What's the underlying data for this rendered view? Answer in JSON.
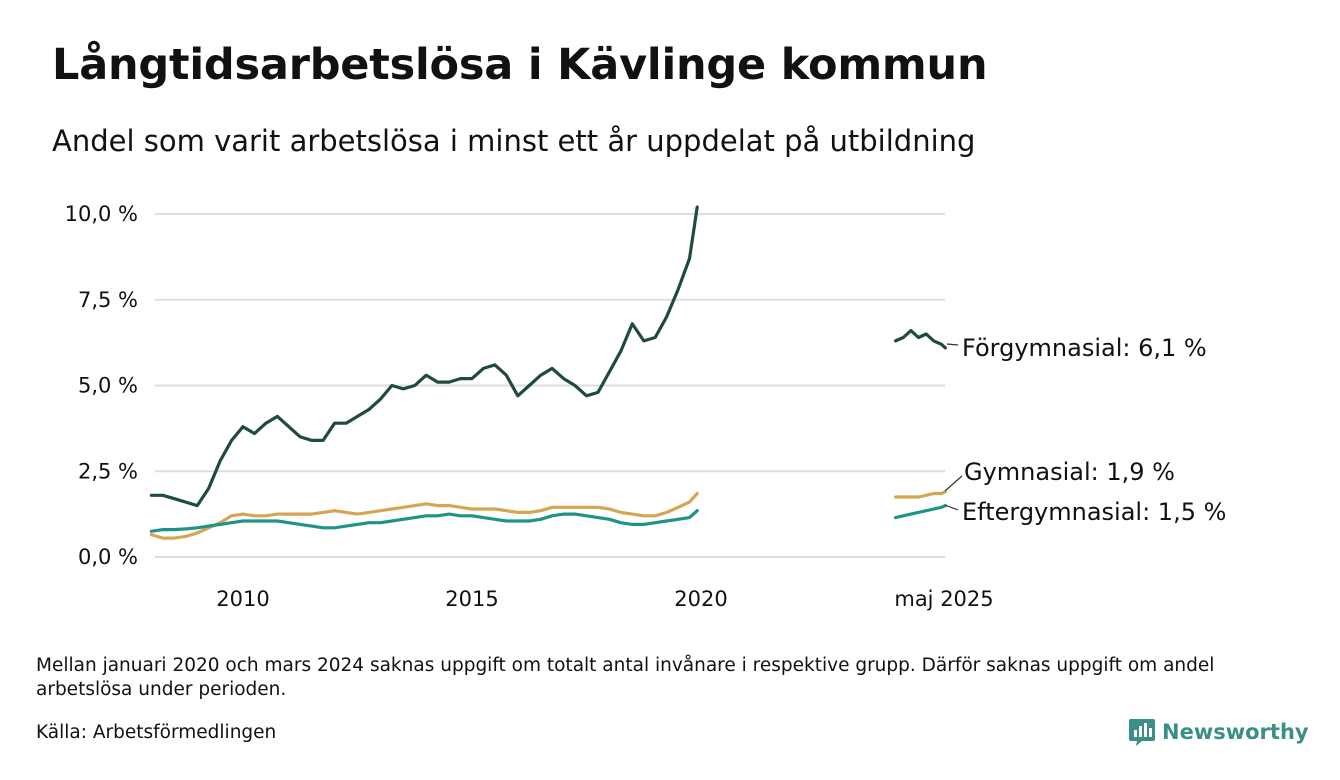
{
  "header": {
    "title": "Långtidsarbetslösa i Kävlinge kommun",
    "subtitle": "Andel som varit arbetslösa i minst ett år uppdelat på utbildning"
  },
  "footer": {
    "note": "Mellan januari 2020 och mars 2024 saknas uppgift om totalt antal invånare i respektive grupp. Därför saknas uppgift om andel arbetslösa under perioden.",
    "source": "Källa: Arbetsförmedlingen",
    "brand": "Newsworthy"
  },
  "colors": {
    "forgymnasial": "#1f4a3f",
    "gymnasial": "#d4a651",
    "eftergymnasial": "#1e9486",
    "grid": "#dddddd",
    "brand": "#3a8f86"
  },
  "chart_data": {
    "type": "line",
    "title": "Långtidsarbetslösa i Kävlinge kommun",
    "ylabel": "",
    "xlabel": "",
    "ylim": [
      0,
      10
    ],
    "y_ticks": [
      "0,0 %",
      "2,5 %",
      "5,0 %",
      "7,5 %",
      "10,0 %"
    ],
    "y_tick_values": [
      0,
      2.5,
      5,
      7.5,
      10
    ],
    "x_ticks": [
      "2010",
      "2015",
      "2020",
      "maj 2025"
    ],
    "grid": true,
    "x": [
      "2008-01",
      "2008-04",
      "2008-07",
      "2008-10",
      "2009-01",
      "2009-04",
      "2009-07",
      "2009-10",
      "2010-01",
      "2010-04",
      "2010-07",
      "2010-10",
      "2011-01",
      "2011-04",
      "2011-07",
      "2011-10",
      "2012-01",
      "2012-04",
      "2012-07",
      "2012-10",
      "2013-01",
      "2013-04",
      "2013-07",
      "2013-10",
      "2014-01",
      "2014-04",
      "2014-07",
      "2014-10",
      "2015-01",
      "2015-04",
      "2015-07",
      "2015-10",
      "2016-01",
      "2016-04",
      "2016-07",
      "2016-10",
      "2017-01",
      "2017-04",
      "2017-07",
      "2017-10",
      "2018-01",
      "2018-04",
      "2018-07",
      "2018-10",
      "2019-01",
      "2019-04",
      "2019-07",
      "2019-10",
      "2019-12"
    ],
    "x_late": [
      "2024-04",
      "2024-06",
      "2024-08",
      "2024-10",
      "2024-12",
      "2025-02",
      "2025-04",
      "2025-05"
    ],
    "series": [
      {
        "name": "Förgymnasial",
        "end_label": "Förgymnasial: 6,1 %",
        "values": [
          1.8,
          1.8,
          1.7,
          1.6,
          1.5,
          2.0,
          2.8,
          3.4,
          3.8,
          3.6,
          3.9,
          4.1,
          3.8,
          3.5,
          3.4,
          3.4,
          3.9,
          3.9,
          4.1,
          4.3,
          4.6,
          5.0,
          4.9,
          5.0,
          5.3,
          5.1,
          5.1,
          5.2,
          5.2,
          5.5,
          5.6,
          5.3,
          4.7,
          5.0,
          5.3,
          5.5,
          5.2,
          5.0,
          4.7,
          4.8,
          5.4,
          6.0,
          6.8,
          6.3,
          6.4,
          7.0,
          7.8,
          8.7,
          10.2
        ],
        "late_values": [
          6.3,
          6.4,
          6.6,
          6.4,
          6.5,
          6.3,
          6.2,
          6.1
        ]
      },
      {
        "name": "Gymnasial",
        "end_label": "Gymnasial: 1,9 %",
        "values": [
          0.65,
          0.55,
          0.55,
          0.6,
          0.7,
          0.85,
          1.0,
          1.2,
          1.25,
          1.2,
          1.2,
          1.25,
          1.25,
          1.25,
          1.25,
          1.3,
          1.35,
          1.3,
          1.25,
          1.3,
          1.35,
          1.4,
          1.45,
          1.5,
          1.55,
          1.5,
          1.5,
          1.45,
          1.4,
          1.4,
          1.4,
          1.35,
          1.3,
          1.3,
          1.35,
          1.45,
          1.45,
          1.45,
          1.45,
          1.45,
          1.4,
          1.3,
          1.25,
          1.2,
          1.2,
          1.3,
          1.45,
          1.6,
          1.85
        ],
        "late_values": [
          1.75,
          1.75,
          1.75,
          1.75,
          1.8,
          1.85,
          1.85,
          1.9
        ]
      },
      {
        "name": "Eftergymnasial",
        "end_label": "Eftergymnasial: 1,5 %",
        "values": [
          0.75,
          0.8,
          0.8,
          0.82,
          0.85,
          0.9,
          0.95,
          1.0,
          1.05,
          1.05,
          1.05,
          1.05,
          1.0,
          0.95,
          0.9,
          0.85,
          0.85,
          0.9,
          0.95,
          1.0,
          1.0,
          1.05,
          1.1,
          1.15,
          1.2,
          1.2,
          1.25,
          1.2,
          1.2,
          1.15,
          1.1,
          1.05,
          1.05,
          1.05,
          1.1,
          1.2,
          1.25,
          1.25,
          1.2,
          1.15,
          1.1,
          1.0,
          0.95,
          0.95,
          1.0,
          1.05,
          1.1,
          1.15,
          1.35
        ],
        "late_values": [
          1.15,
          1.2,
          1.25,
          1.3,
          1.35,
          1.4,
          1.45,
          1.5
        ]
      }
    ]
  }
}
